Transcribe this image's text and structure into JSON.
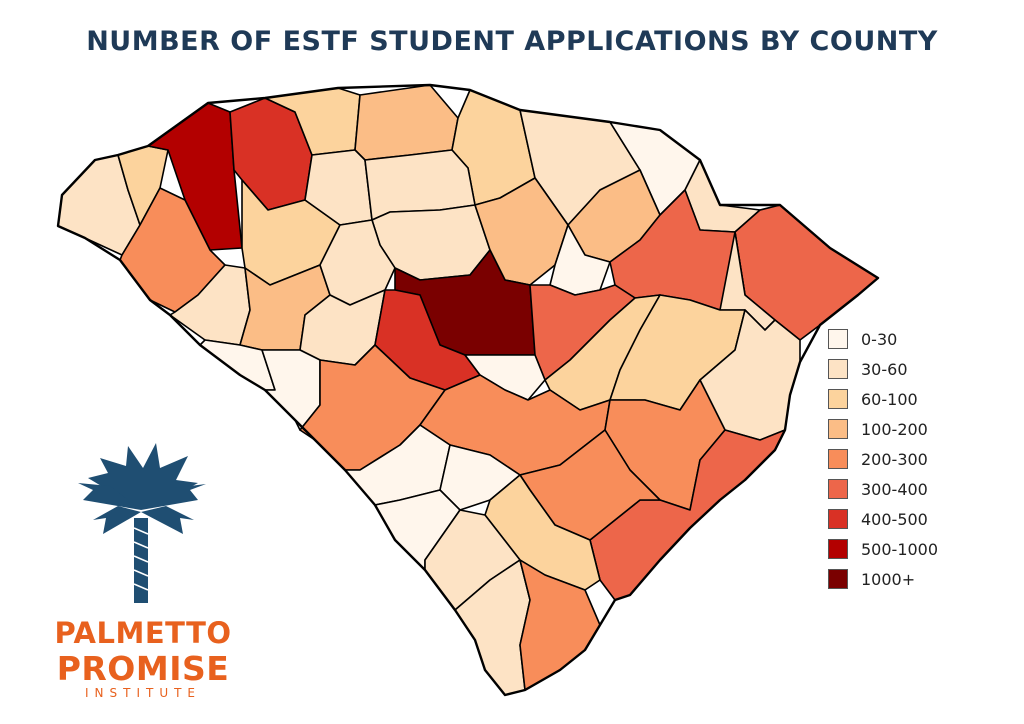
{
  "title": "NUMBER OF ESTF STUDENT APPLICATIONS BY COUNTY",
  "legend": [
    {
      "label": "0-30",
      "color": "#fff6ec"
    },
    {
      "label": "30-60",
      "color": "#fde3c5"
    },
    {
      "label": "60-100",
      "color": "#fcd39d"
    },
    {
      "label": "100-200",
      "color": "#fbbd86"
    },
    {
      "label": "200-300",
      "color": "#f88d5a"
    },
    {
      "label": "300-400",
      "color": "#ed664a"
    },
    {
      "label": "400-500",
      "color": "#d93125"
    },
    {
      "label": "500-1000",
      "color": "#b30000"
    },
    {
      "label": "1000+",
      "color": "#7a0000"
    }
  ],
  "logo": {
    "line1": "PALMETTO",
    "line2": "PROMISE",
    "line3": "INSTITUTE",
    "tree_icon": "palmetto-tree-icon",
    "text_color": "#e8611e",
    "tree_color": "#1f4e72"
  },
  "map": {
    "state": "South Carolina",
    "counties": [
      {
        "name": "Oconee",
        "bin": "30-60"
      },
      {
        "name": "Pickens",
        "bin": "60-100"
      },
      {
        "name": "Greenville",
        "bin": "500-1000"
      },
      {
        "name": "Spartanburg",
        "bin": "400-500"
      },
      {
        "name": "Cherokee",
        "bin": "60-100"
      },
      {
        "name": "York",
        "bin": "100-200"
      },
      {
        "name": "Lancaster",
        "bin": "60-100"
      },
      {
        "name": "Chesterfield",
        "bin": "30-60"
      },
      {
        "name": "Marlboro",
        "bin": "0-30"
      },
      {
        "name": "Dillon",
        "bin": "30-60"
      },
      {
        "name": "Horry",
        "bin": "300-400"
      },
      {
        "name": "Anderson",
        "bin": "200-300"
      },
      {
        "name": "Laurens",
        "bin": "60-100"
      },
      {
        "name": "Union",
        "bin": "30-60"
      },
      {
        "name": "Chester",
        "bin": "30-60"
      },
      {
        "name": "Fairfield",
        "bin": "30-60"
      },
      {
        "name": "Kershaw",
        "bin": "100-200"
      },
      {
        "name": "Darlington",
        "bin": "100-200"
      },
      {
        "name": "Lee",
        "bin": "0-30"
      },
      {
        "name": "Florence",
        "bin": "300-400"
      },
      {
        "name": "Marion",
        "bin": "30-60"
      },
      {
        "name": "Abbeville",
        "bin": "30-60"
      },
      {
        "name": "Greenwood",
        "bin": "100-200"
      },
      {
        "name": "Newberry",
        "bin": "30-60"
      },
      {
        "name": "Saluda",
        "bin": "30-60"
      },
      {
        "name": "Richland",
        "bin": "1000+"
      },
      {
        "name": "Sumter",
        "bin": "300-400"
      },
      {
        "name": "Lexington",
        "bin": "400-500"
      },
      {
        "name": "Calhoun",
        "bin": "0-30"
      },
      {
        "name": "Clarendon",
        "bin": "60-100"
      },
      {
        "name": "Williamsburg",
        "bin": "60-100"
      },
      {
        "name": "Georgetown",
        "bin": "30-60"
      },
      {
        "name": "McCormick",
        "bin": "0-30"
      },
      {
        "name": "Edgefield",
        "bin": "0-30"
      },
      {
        "name": "Aiken",
        "bin": "200-300"
      },
      {
        "name": "Orangeburg",
        "bin": "200-300"
      },
      {
        "name": "Berkeley",
        "bin": "200-300"
      },
      {
        "name": "Charleston",
        "bin": "300-400"
      },
      {
        "name": "Dorchester",
        "bin": "200-300"
      },
      {
        "name": "Barnwell",
        "bin": "0-30"
      },
      {
        "name": "Bamberg",
        "bin": "0-30"
      },
      {
        "name": "Allendale",
        "bin": "0-30"
      },
      {
        "name": "Colleton",
        "bin": "60-100"
      },
      {
        "name": "Hampton",
        "bin": "30-60"
      },
      {
        "name": "Jasper",
        "bin": "30-60"
      },
      {
        "name": "Beaufort",
        "bin": "200-300"
      }
    ]
  }
}
